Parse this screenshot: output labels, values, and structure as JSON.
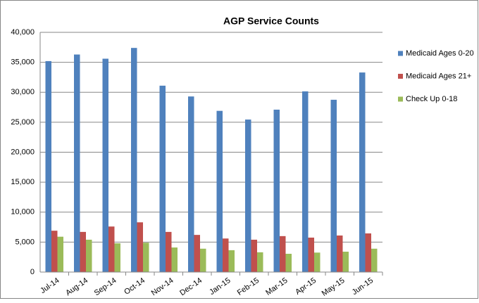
{
  "chart_data": {
    "type": "bar",
    "title": "AGP Service Counts",
    "categories": [
      "Jul-14",
      "Aug-14",
      "Sep-14",
      "Oct-14",
      "Nov-14",
      "Dec-14",
      "Jan-15",
      "Feb-15",
      "Mar-15",
      "Apr-15",
      "May-15",
      "Jun-15"
    ],
    "series": [
      {
        "name": "Medicaid Ages 0-20",
        "color": "#4f81bd",
        "values": [
          35200,
          36300,
          35600,
          37400,
          31100,
          29300,
          26900,
          25450,
          27100,
          30150,
          28750,
          33300
        ]
      },
      {
        "name": "Medicaid Ages 21+",
        "color": "#c0504d",
        "values": [
          6900,
          6700,
          7600,
          8300,
          6700,
          6200,
          5600,
          5400,
          6000,
          5750,
          6100,
          6450
        ]
      },
      {
        "name": "Check Up 0-18",
        "color": "#9bbb59",
        "values": [
          5900,
          5400,
          4800,
          4900,
          4100,
          3900,
          3650,
          3300,
          3050,
          3250,
          3400,
          3900
        ]
      }
    ],
    "ylim": [
      0,
      40000
    ],
    "yticks": [
      0,
      {
        "value": 5000,
        "label": "5,000"
      },
      {
        "value": 10000,
        "label": "10,000"
      },
      {
        "value": 15000,
        "label": "15,000"
      },
      {
        "value": 20000,
        "label": "20,000"
      },
      {
        "value": 25000,
        "label": "25,000"
      },
      {
        "value": 30000,
        "label": "30,000"
      },
      {
        "value": 35000,
        "label": "35,000"
      },
      {
        "value": 40000,
        "label": "40,000"
      }
    ],
    "grid": true,
    "legend": "right"
  }
}
